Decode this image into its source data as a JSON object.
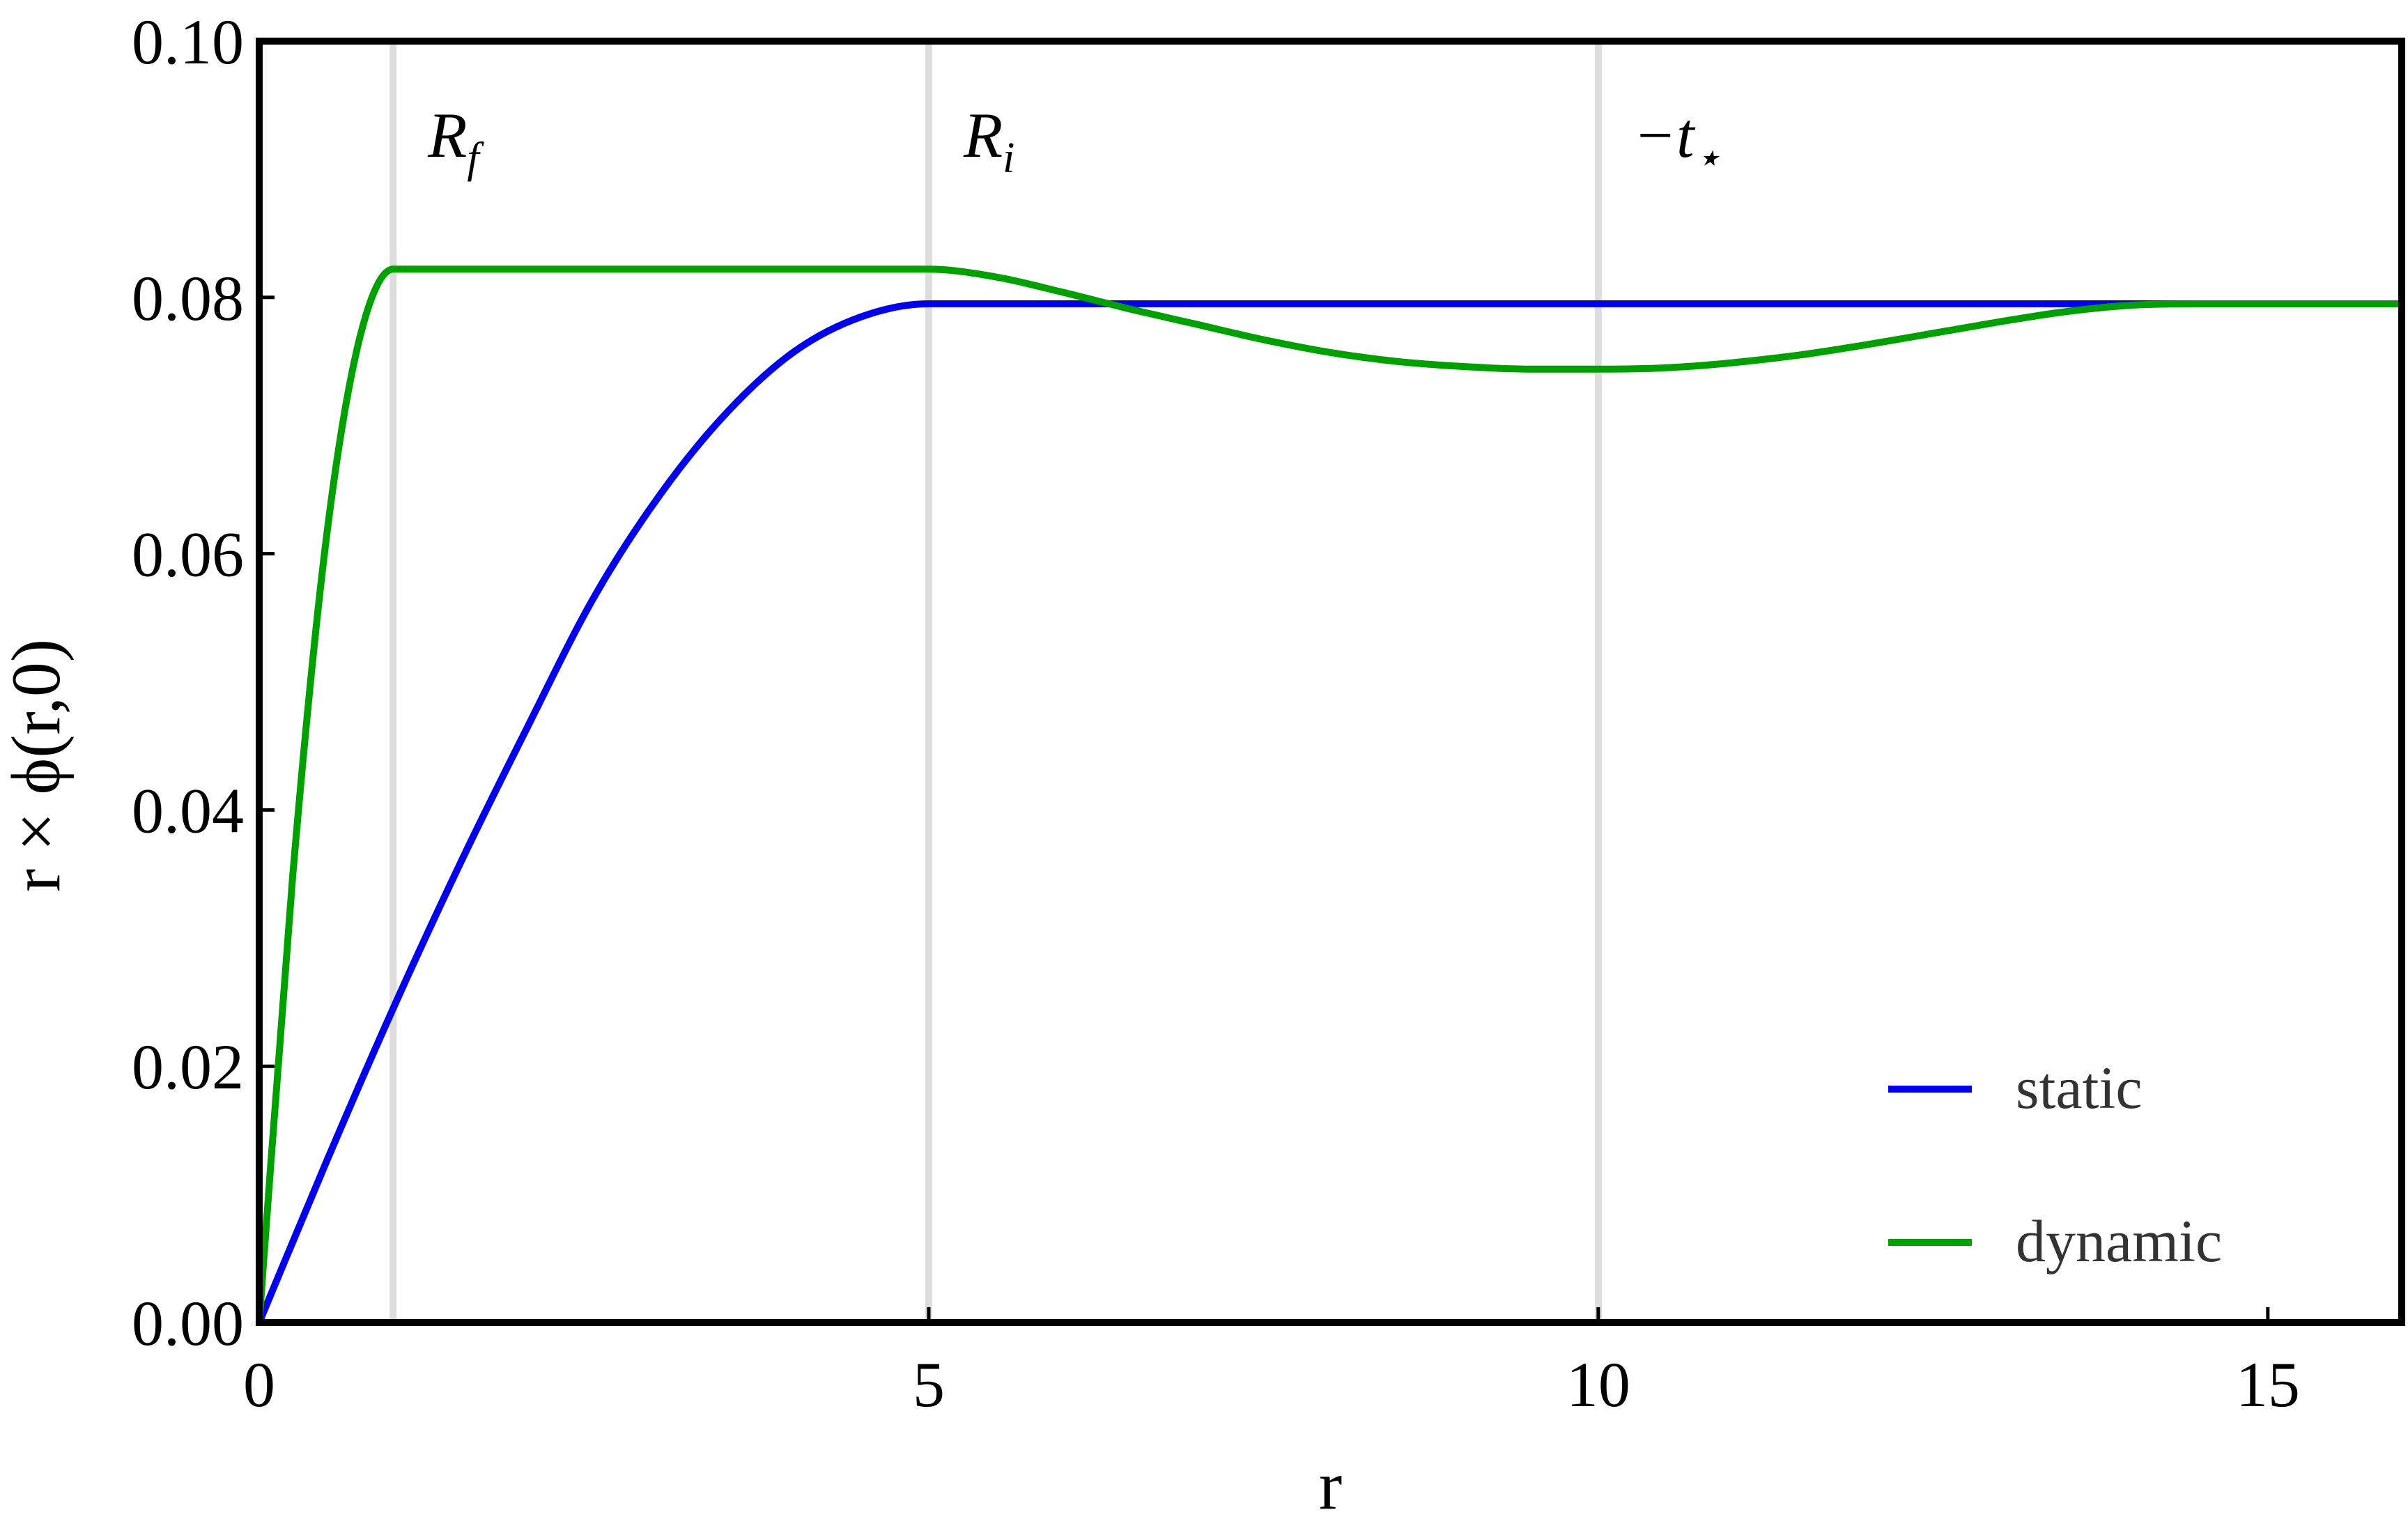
{
  "chart_data": {
    "type": "line",
    "xlabel": "r",
    "ylabel": "r × ϕ(r,0)",
    "xlim": [
      0,
      16
    ],
    "ylim": [
      0,
      0.1
    ],
    "x_ticks": [
      0,
      5,
      10,
      15
    ],
    "x_tick_labels": [
      "0",
      "5",
      "10",
      "15"
    ],
    "y_ticks": [
      0,
      0.02,
      0.04,
      0.06,
      0.08,
      0.1
    ],
    "y_tick_labels": [
      "0.00",
      "0.02",
      "0.04",
      "0.06",
      "0.08",
      "0.10"
    ],
    "grid": false,
    "legend_position": "bottom-right",
    "vertical_lines": [
      {
        "x": 1,
        "label_base": "R",
        "label_sub": "f"
      },
      {
        "x": 5,
        "label_base": "R",
        "label_sub": "i"
      },
      {
        "x": 10,
        "label_base": "−t",
        "label_sub": "⋆"
      }
    ],
    "series": [
      {
        "name": "static",
        "color": "#0000ee",
        "x": [
          0,
          0.5,
          1,
          1.5,
          2,
          2.5,
          3,
          3.5,
          4,
          4.5,
          5,
          6,
          8,
          10,
          12,
          14,
          16
        ],
        "y": [
          0,
          0.0125,
          0.0245,
          0.0358,
          0.0464,
          0.0566,
          0.0647,
          0.0711,
          0.0758,
          0.0785,
          0.0795,
          0.0795,
          0.0795,
          0.0795,
          0.0795,
          0.0795,
          0.0795
        ]
      },
      {
        "name": "dynamic",
        "color": "#00a000",
        "x": [
          0,
          0.25,
          0.5,
          0.75,
          1,
          2,
          3,
          4,
          5,
          5.5,
          6,
          6.5,
          7,
          7.5,
          8,
          8.5,
          9,
          9.5,
          10,
          10.5,
          11,
          11.5,
          12,
          12.5,
          13,
          13.5,
          14,
          14.5,
          15,
          16
        ],
        "y": [
          0,
          0.0348,
          0.0611,
          0.0768,
          0.0822,
          0.0822,
          0.0822,
          0.0822,
          0.0822,
          0.0816,
          0.0804,
          0.0791,
          0.0779,
          0.0767,
          0.0757,
          0.075,
          0.0746,
          0.0744,
          0.0744,
          0.0745,
          0.0749,
          0.0755,
          0.0763,
          0.0772,
          0.0781,
          0.0789,
          0.0794,
          0.0795,
          0.0795,
          0.0795
        ]
      }
    ]
  }
}
